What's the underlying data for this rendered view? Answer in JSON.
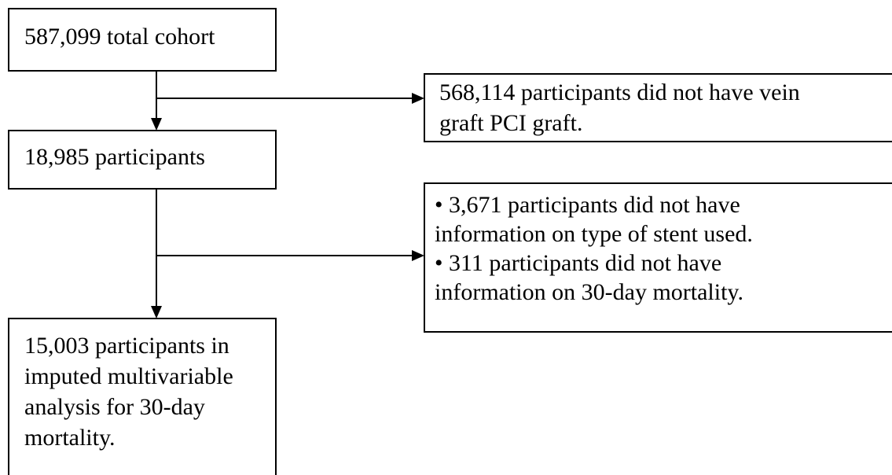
{
  "nodes": [
    {
      "lines": [
        "587,099 total cohort"
      ]
    },
    {
      "lines": [
        "568,114 participants did not have vein",
        "graft PCI graft."
      ]
    },
    {
      "lines": [
        "18,985 participants"
      ]
    },
    {
      "lines": [
        "• 3,671 participants did not have",
        "information on type of stent used.",
        "• 311 participants did not have",
        "information on 30-day mortality."
      ]
    },
    {
      "lines": [
        "15,003 participants in",
        "imputed multivariable",
        "analysis for 30-day",
        "mortality."
      ]
    }
  ]
}
